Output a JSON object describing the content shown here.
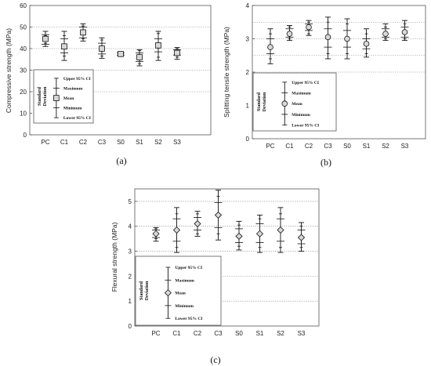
{
  "chart_data": [
    {
      "id": "a",
      "type": "box",
      "caption": "(a)",
      "ylabel": "Compressive strength (MPa)",
      "ylim": [
        0,
        60
      ],
      "yticks": [
        0,
        10,
        20,
        30,
        40,
        50,
        60
      ],
      "grid_lines": [
        20,
        30,
        40,
        50
      ],
      "categories": [
        "PC",
        "C1",
        "C2",
        "C3",
        "S0",
        "S1",
        "S2",
        "S3"
      ],
      "marker": "square",
      "stats": [
        {
          "mean": 44.5,
          "sd": [
            42.0,
            46.5
          ],
          "range": [
            41.0,
            48.0
          ],
          "ci": [
            42.5,
            46.0
          ]
        },
        {
          "mean": 41.0,
          "sd": [
            38.0,
            44.5
          ],
          "range": [
            34.5,
            48.0
          ],
          "ci": [
            36.5,
            46.0
          ]
        },
        {
          "mean": 47.5,
          "sd": [
            45.0,
            50.0
          ],
          "range": [
            43.5,
            51.5
          ],
          "ci": [
            44.5,
            50.5
          ]
        },
        {
          "mean": 40.0,
          "sd": [
            37.5,
            42.5
          ],
          "range": [
            35.5,
            45.0
          ],
          "ci": [
            36.5,
            44.0
          ]
        },
        {
          "mean": 37.5,
          "sd": [
            37.0,
            38.0
          ],
          "range": [
            36.5,
            38.5
          ],
          "ci": [
            36.8,
            38.2
          ]
        },
        {
          "mean": 36.0,
          "sd": [
            34.0,
            38.0
          ],
          "range": [
            32.0,
            39.5
          ],
          "ci": [
            33.0,
            39.0
          ]
        },
        {
          "mean": 41.5,
          "sd": [
            38.5,
            44.5
          ],
          "range": [
            34.5,
            48.0
          ],
          "ci": [
            36.0,
            47.0
          ]
        },
        {
          "mean": 38.0,
          "sd": [
            37.0,
            39.5
          ],
          "range": [
            35.0,
            40.5
          ],
          "ci": [
            36.0,
            40.0
          ]
        }
      ]
    },
    {
      "id": "b",
      "type": "box",
      "caption": "(b)",
      "ylabel": "Splitting tensile strength (MPa)",
      "ylim": [
        0,
        4
      ],
      "yticks": [
        0,
        1,
        2,
        3,
        4
      ],
      "grid_lines": [
        2,
        2.5,
        3,
        3.5
      ],
      "categories": [
        "PC",
        "C1",
        "C2",
        "C3",
        "S0",
        "S1",
        "S2",
        "S3"
      ],
      "marker": "circle",
      "stats": [
        {
          "mean": 2.75,
          "sd": [
            2.55,
            3.0
          ],
          "range": [
            2.25,
            3.3
          ],
          "ci": [
            2.4,
            3.15
          ]
        },
        {
          "mean": 3.15,
          "sd": [
            3.05,
            3.3
          ],
          "range": [
            2.95,
            3.4
          ],
          "ci": [
            3.0,
            3.35
          ]
        },
        {
          "mean": 3.35,
          "sd": [
            3.25,
            3.45
          ],
          "range": [
            3.1,
            3.55
          ],
          "ci": [
            3.15,
            3.5
          ]
        },
        {
          "mean": 3.05,
          "sd": [
            2.75,
            3.3
          ],
          "range": [
            2.4,
            3.65
          ],
          "ci": [
            2.55,
            3.5
          ]
        },
        {
          "mean": 3.0,
          "sd": [
            2.75,
            3.25
          ],
          "range": [
            2.4,
            3.6
          ],
          "ci": [
            2.55,
            3.45
          ]
        },
        {
          "mean": 2.85,
          "sd": [
            2.7,
            3.0
          ],
          "range": [
            2.45,
            3.3
          ],
          "ci": [
            2.55,
            3.15
          ]
        },
        {
          "mean": 3.15,
          "sd": [
            3.05,
            3.3
          ],
          "range": [
            2.95,
            3.45
          ],
          "ci": [
            3.0,
            3.35
          ]
        },
        {
          "mean": 3.2,
          "sd": [
            3.05,
            3.35
          ],
          "range": [
            2.95,
            3.55
          ],
          "ci": [
            3.0,
            3.45
          ]
        }
      ]
    },
    {
      "id": "c",
      "type": "box",
      "caption": "(c)",
      "ylabel": "Flexural strength (MPa)",
      "ylim": [
        0,
        5.5
      ],
      "yticks": [
        0,
        1,
        2,
        3,
        4,
        5
      ],
      "grid_lines": [
        1,
        2,
        3,
        4,
        5
      ],
      "categories": [
        "PC",
        "C1",
        "C2",
        "C3",
        "S0",
        "S1",
        "S2",
        "S3"
      ],
      "marker": "diamond",
      "stats": [
        {
          "mean": 3.7,
          "sd": [
            3.55,
            3.85
          ],
          "range": [
            3.4,
            3.95
          ],
          "ci": [
            3.5,
            3.9
          ]
        },
        {
          "mean": 3.85,
          "sd": [
            3.4,
            4.3
          ],
          "range": [
            2.95,
            4.75
          ],
          "ci": [
            3.15,
            4.5
          ]
        },
        {
          "mean": 4.1,
          "sd": [
            3.85,
            4.35
          ],
          "range": [
            3.6,
            4.6
          ],
          "ci": [
            3.7,
            4.5
          ]
        },
        {
          "mean": 4.45,
          "sd": [
            3.95,
            4.95
          ],
          "range": [
            3.45,
            5.45
          ],
          "ci": [
            3.7,
            5.2
          ]
        },
        {
          "mean": 3.6,
          "sd": [
            3.35,
            3.9
          ],
          "range": [
            3.05,
            4.2
          ],
          "ci": [
            3.2,
            4.05
          ]
        },
        {
          "mean": 3.7,
          "sd": [
            3.35,
            4.1
          ],
          "range": [
            2.95,
            4.45
          ],
          "ci": [
            3.15,
            4.3
          ]
        },
        {
          "mean": 3.85,
          "sd": [
            3.4,
            4.3
          ],
          "range": [
            2.95,
            4.75
          ],
          "ci": [
            3.15,
            4.5
          ]
        },
        {
          "mean": 3.55,
          "sd": [
            3.3,
            3.85
          ],
          "range": [
            3.0,
            4.15
          ],
          "ci": [
            3.15,
            4.0
          ]
        }
      ]
    }
  ],
  "legend": {
    "side_label_1": "Standard",
    "side_label_2": "Deviation",
    "upper_ci": "Upper 95% CI",
    "maximum": "Maximum",
    "mean": "Mean",
    "minimum": "Minimum",
    "lower_ci": "Lower 95% CI"
  },
  "colors": {
    "frame": "#555555",
    "grid": "#777777",
    "marker_fill": "#d8d8d8",
    "ink": "#111111"
  }
}
